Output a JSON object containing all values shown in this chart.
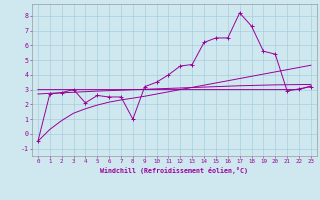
{
  "xlabel": "Windchill (Refroidissement éolien,°C)",
  "background_color": "#cfe8f0",
  "grid_color": "#a0c8d8",
  "line_color": "#990099",
  "x": [
    0,
    1,
    2,
    3,
    4,
    5,
    6,
    7,
    8,
    9,
    10,
    11,
    12,
    13,
    14,
    15,
    16,
    17,
    18,
    19,
    20,
    21,
    22,
    23
  ],
  "y_main": [
    -0.5,
    2.7,
    2.8,
    3.0,
    2.1,
    2.6,
    2.5,
    2.5,
    1.0,
    3.2,
    3.5,
    4.0,
    4.6,
    4.7,
    6.2,
    6.5,
    6.5,
    8.2,
    7.3,
    5.6,
    5.4,
    2.9,
    3.05,
    3.2
  ],
  "y_avg": [
    3.0,
    3.0,
    3.0,
    3.0,
    3.0,
    3.0,
    3.0,
    3.0,
    3.0,
    3.0,
    3.0,
    3.0,
    3.0,
    3.0,
    3.0,
    3.0,
    3.0,
    3.0,
    3.0,
    3.0,
    3.0,
    3.0,
    3.0,
    3.25
  ],
  "y_trend1": [
    -0.5,
    0.3,
    0.9,
    1.4,
    1.7,
    1.95,
    2.15,
    2.3,
    2.42,
    2.55,
    2.7,
    2.85,
    3.0,
    3.15,
    3.3,
    3.45,
    3.6,
    3.75,
    3.9,
    4.05,
    4.2,
    4.35,
    4.5,
    4.65
  ],
  "y_trend2": [
    2.7,
    2.75,
    2.78,
    2.82,
    2.86,
    2.9,
    2.93,
    2.96,
    2.99,
    3.02,
    3.05,
    3.08,
    3.11,
    3.14,
    3.17,
    3.2,
    3.23,
    3.26,
    3.28,
    3.3,
    3.32,
    3.33,
    3.34,
    3.35
  ],
  "ylim": [
    -1.5,
    8.8
  ],
  "xlim": [
    -0.5,
    23.5
  ],
  "yticks": [
    -1,
    0,
    1,
    2,
    3,
    4,
    5,
    6,
    7,
    8
  ],
  "xticks": [
    0,
    1,
    2,
    3,
    4,
    5,
    6,
    7,
    8,
    9,
    10,
    11,
    12,
    13,
    14,
    15,
    16,
    17,
    18,
    19,
    20,
    21,
    22,
    23
  ]
}
